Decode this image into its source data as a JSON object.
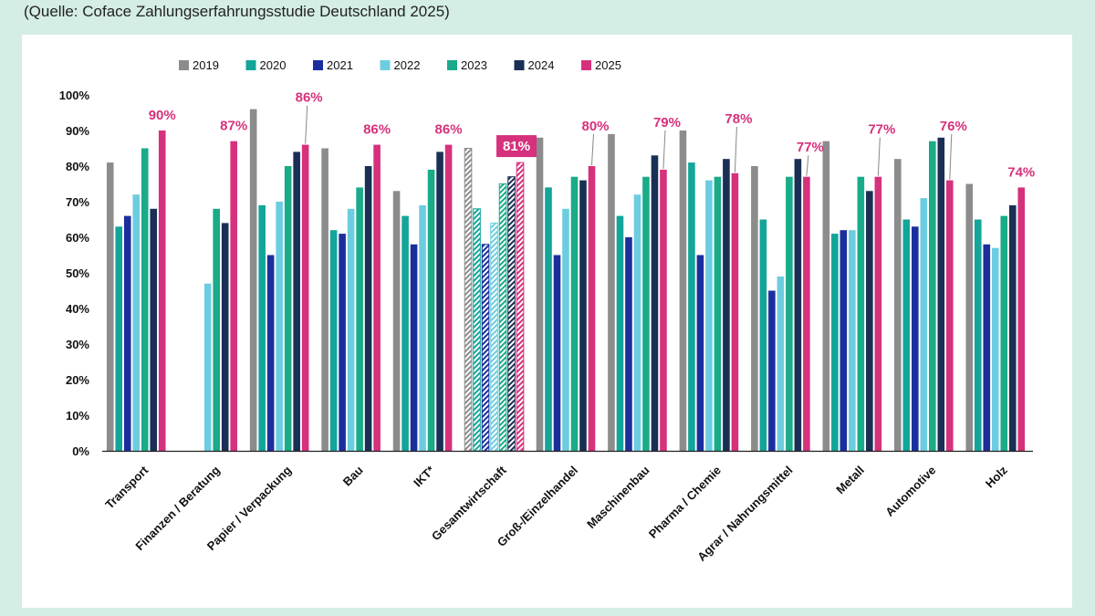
{
  "source_note": "(Quelle: Coface Zahlungserfahrungsstudie Deutschland 2025)",
  "colors": {
    "2019": "#8c8c8c",
    "2020": "#13a59a",
    "2021": "#1b2f9c",
    "2022": "#6dcde0",
    "2023": "#1aab88",
    "2024": "#1a2f55",
    "2025": "#d6317c",
    "label": "#d6317c"
  },
  "chart_data": {
    "type": "bar",
    "title": "",
    "xlabel": "",
    "ylabel": "",
    "ylim": [
      0,
      100
    ],
    "y_ticks": [
      "0%",
      "10%",
      "20%",
      "30%",
      "40%",
      "50%",
      "60%",
      "70%",
      "80%",
      "90%",
      "100%"
    ],
    "legend_position": "top",
    "categories": [
      "Transport",
      "Finanzen / Beratung",
      "Papier / Verpackung",
      "Bau",
      "IKT*",
      "Gesamtwirtschaft",
      "Groß-/Einzelhandel",
      "Maschinenbau",
      "Pharma / Chemie",
      "Agrar / Nahrungsmittel",
      "Metall",
      "Automotive",
      "Holz"
    ],
    "highlighted_category": "Gesamtwirtschaft",
    "series": [
      {
        "name": "2019",
        "values": [
          81,
          null,
          96,
          85,
          73,
          85,
          88,
          89,
          90,
          80,
          87,
          82,
          75
        ]
      },
      {
        "name": "2020",
        "values": [
          63,
          null,
          69,
          62,
          66,
          68,
          74,
          66,
          81,
          65,
          61,
          65,
          65
        ]
      },
      {
        "name": "2021",
        "values": [
          66,
          null,
          55,
          61,
          58,
          58,
          55,
          60,
          55,
          45,
          62,
          63,
          58
        ]
      },
      {
        "name": "2022",
        "values": [
          72,
          47,
          70,
          68,
          69,
          64,
          68,
          72,
          76,
          49,
          62,
          71,
          57
        ]
      },
      {
        "name": "2023",
        "values": [
          85,
          68,
          80,
          74,
          79,
          75,
          77,
          77,
          77,
          77,
          77,
          87,
          66
        ]
      },
      {
        "name": "2024",
        "values": [
          68,
          64,
          84,
          80,
          84,
          77,
          76,
          83,
          82,
          82,
          73,
          88,
          69
        ]
      },
      {
        "name": "2025",
        "values": [
          90,
          87,
          86,
          86,
          86,
          81,
          80,
          79,
          78,
          77,
          77,
          76,
          74
        ]
      }
    ],
    "data_labels_2025": [
      "90%",
      "87%",
      "86%",
      "86%",
      "86%",
      "81%",
      "80%",
      "79%",
      "78%",
      "77%",
      "77%",
      "76%",
      "74%"
    ]
  }
}
